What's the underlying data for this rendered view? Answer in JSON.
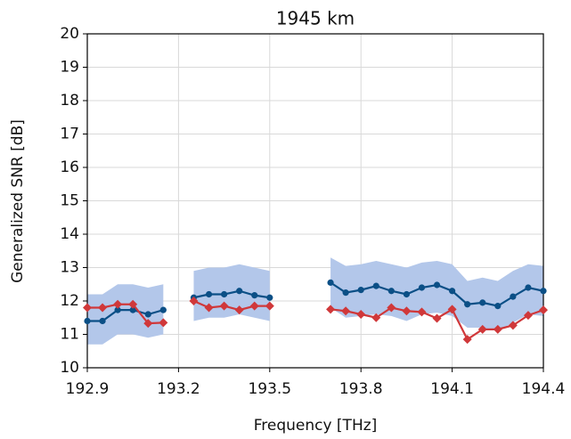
{
  "chart_data": {
    "type": "line",
    "title": "1945 km",
    "xlabel": "Frequency [THz]",
    "ylabel": "Generalized SNR [dB]",
    "x": [
      192.9,
      192.95,
      193.0,
      193.05,
      193.1,
      193.15,
      193.2,
      193.25,
      193.3,
      193.35,
      193.4,
      193.45,
      193.5,
      193.55,
      193.6,
      193.65,
      193.7,
      193.75,
      193.8,
      193.85,
      193.9,
      193.95,
      194.0,
      194.05,
      194.1,
      194.15,
      194.2,
      194.25,
      194.3,
      194.35,
      194.4
    ],
    "band": {
      "color": "#b3c7ea",
      "upper": [
        12.2,
        12.2,
        12.5,
        12.5,
        12.4,
        12.5,
        null,
        12.9,
        13.0,
        13.0,
        13.1,
        13.0,
        12.9,
        null,
        null,
        null,
        13.3,
        13.05,
        13.1,
        13.2,
        13.1,
        13.0,
        13.15,
        13.2,
        13.1,
        12.6,
        12.7,
        12.6,
        12.9,
        13.1,
        13.05
      ],
      "lower": [
        10.7,
        10.7,
        11.0,
        11.0,
        10.9,
        11.0,
        null,
        11.4,
        11.5,
        11.5,
        11.6,
        11.5,
        11.4,
        null,
        null,
        null,
        11.8,
        11.5,
        11.55,
        11.6,
        11.55,
        11.4,
        11.6,
        11.65,
        11.55,
        11.2,
        11.2,
        11.1,
        11.35,
        11.6,
        11.55
      ]
    },
    "series": [
      {
        "color": "#0b4f86",
        "marker": "circle",
        "values": [
          11.4,
          11.4,
          11.73,
          11.73,
          11.6,
          11.73,
          null,
          12.1,
          12.2,
          12.2,
          12.3,
          12.17,
          12.1,
          null,
          null,
          null,
          12.55,
          12.25,
          12.33,
          12.45,
          12.3,
          12.2,
          12.4,
          12.48,
          12.3,
          11.9,
          11.95,
          11.85,
          12.13,
          12.4,
          12.3
        ]
      },
      {
        "color": "#d0383a",
        "marker": "diamond",
        "values": [
          11.8,
          11.8,
          11.9,
          11.9,
          11.33,
          11.35,
          null,
          12.0,
          11.8,
          11.85,
          11.73,
          11.85,
          11.85,
          null,
          null,
          null,
          11.75,
          11.7,
          11.6,
          11.5,
          11.8,
          11.7,
          11.67,
          11.48,
          11.75,
          10.85,
          11.15,
          11.15,
          11.27,
          11.57,
          11.73
        ]
      }
    ],
    "xlim": [
      192.9,
      194.4
    ],
    "xticks": [
      192.9,
      193.2,
      193.5,
      193.8,
      194.1,
      194.4
    ],
    "ylim": [
      10,
      20
    ],
    "yticks": [
      10,
      11,
      12,
      13,
      14,
      15,
      16,
      17,
      18,
      19,
      20
    ],
    "grid": true
  }
}
